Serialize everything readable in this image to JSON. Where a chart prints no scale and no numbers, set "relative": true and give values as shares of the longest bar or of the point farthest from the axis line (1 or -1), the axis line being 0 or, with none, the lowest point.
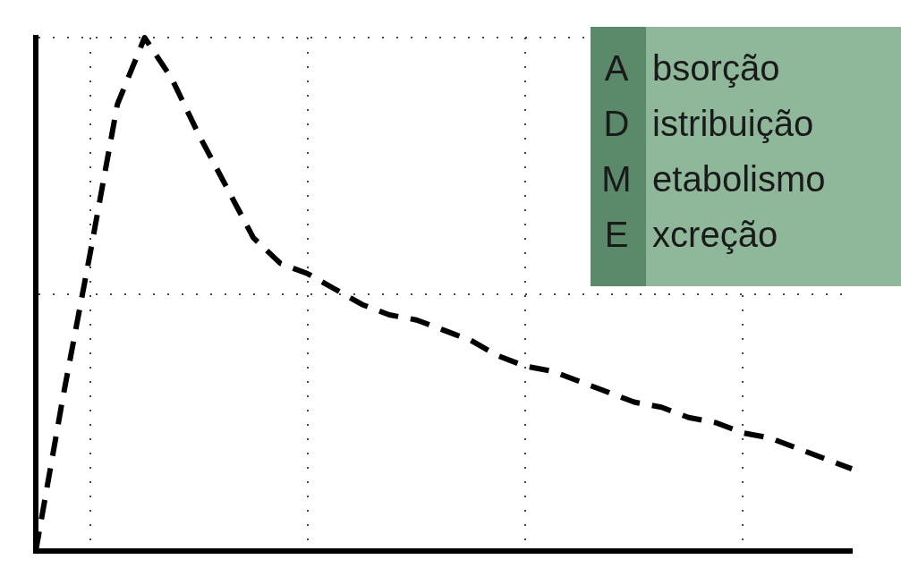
{
  "chart_data": {
    "type": "line",
    "relative": true,
    "grid": true,
    "line_style": "dashed",
    "marker": "none",
    "categories": [
      null,
      null,
      null,
      null,
      null,
      null,
      null,
      null,
      null,
      null,
      null,
      null,
      null,
      null,
      null,
      null,
      null,
      null,
      null,
      null,
      null,
      null,
      null,
      null,
      null,
      null,
      null,
      null,
      null,
      null,
      null
    ],
    "series": [
      {
        "color": "#000000",
        "values": [
          0,
          0.3,
          0.58,
          0.87,
          1.0,
          0.92,
          0.81,
          0.71,
          0.61,
          0.56,
          0.54,
          0.51,
          0.48,
          0.46,
          0.45,
          0.43,
          0.41,
          0.38,
          0.36,
          0.35,
          0.33,
          0.31,
          0.29,
          0.28,
          0.26,
          0.25,
          0.23,
          0.22,
          0.2,
          0.18,
          0.16
        ]
      }
    ],
    "annotations": [
      "A bsorção",
      "D istribuição",
      "M etabolismo",
      "E xcreção"
    ]
  }
}
